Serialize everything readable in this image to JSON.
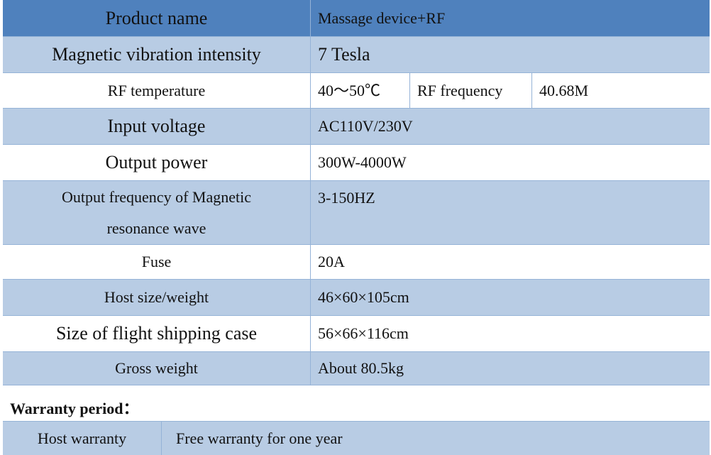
{
  "table": {
    "header": [
      "Product name",
      "Massage device+RF"
    ],
    "rows": [
      [
        "Magnetic vibration intensity",
        "7 Tesla"
      ],
      [
        "RF temperature",
        "40～50℃",
        "RF frequency",
        "40.68M"
      ],
      [
        "Input voltage",
        "AC110V/230V"
      ],
      [
        "Output power",
        "300W-4000W"
      ],
      [
        "Output frequency of Magnetic resonance wave",
        "3-150HZ"
      ],
      [
        "Fuse",
        "20A"
      ],
      [
        "Host size/weight",
        "46×60×105cm"
      ],
      [
        "Size of flight shipping case",
        "56×66×116cm"
      ],
      [
        "Gross weight",
        "About 80.5kg"
      ]
    ]
  },
  "warranty": {
    "title": "Warranty period：",
    "rows": [
      [
        "Host warranty",
        "Free warranty for one year"
      ]
    ]
  }
}
